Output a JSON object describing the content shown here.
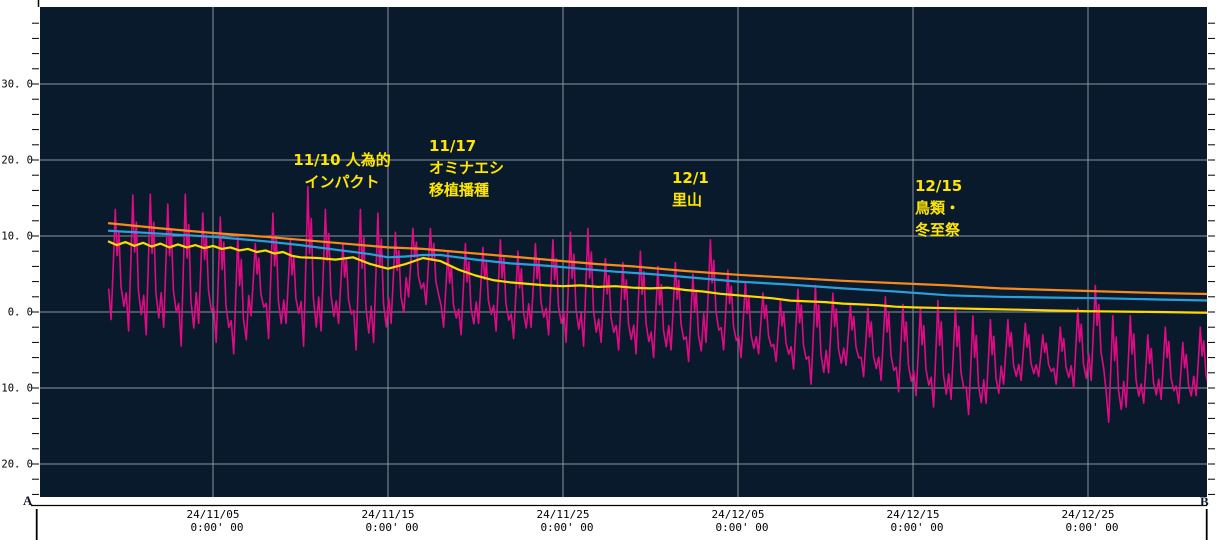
{
  "figure": {
    "outer_bg": "#ffffff",
    "plot_bg": "#081a2c",
    "grid_color": "#8d949c",
    "axis_text_color": "#000000",
    "annotation_color": "#ffe600"
  },
  "endpoints": {
    "left": "A",
    "right": "B"
  },
  "annotations": [
    {
      "id": "impact",
      "text": "11/10 人為的\nインパクト"
    },
    {
      "id": "ominaeshi",
      "text": "11/17\nオミナエシ\n移植播種"
    },
    {
      "id": "satoyama",
      "text": "12/1\n里山"
    },
    {
      "id": "winter",
      "text": "12/15\n鳥類・\n冬至祭"
    }
  ],
  "chart_data": {
    "type": "line",
    "title": "",
    "xlabel": "",
    "ylabel": "",
    "grid": true,
    "legend": "none",
    "x_unit": "days since 24/10/30 0:00",
    "x_range_days": [
      -3.9,
      62.8
    ],
    "ylim": [
      -24.3,
      40.1
    ],
    "y_minor_tick_step": 2,
    "y_ticks": [
      {
        "value": 30,
        "label": "30. 0"
      },
      {
        "value": 20,
        "label": "20. 0"
      },
      {
        "value": 10,
        "label": "10. 0"
      },
      {
        "value": 0,
        "label": "0. 0"
      },
      {
        "value": -10,
        "label": "-10. 0"
      },
      {
        "value": -20,
        "label": "-20. 0"
      }
    ],
    "x_ticks": [
      {
        "day": 6,
        "date": "24/11/05",
        "time": "0:00' 00"
      },
      {
        "day": 16,
        "date": "24/11/15",
        "time": "0:00' 00"
      },
      {
        "day": 26,
        "date": "24/11/25",
        "time": "0:00' 00"
      },
      {
        "day": 36,
        "date": "24/12/05",
        "time": "0:00' 00"
      },
      {
        "day": 46,
        "date": "24/12/15",
        "time": "0:00' 00"
      },
      {
        "day": 56,
        "date": "24/12/25",
        "time": "0:00' 00"
      }
    ],
    "series": [
      {
        "name": "raw-diurnal-magenta",
        "color": "#e00a84",
        "style": "jagged-daily",
        "daily_hi_lo": [
          [
            0,
            13.5,
            -1.0
          ],
          [
            1,
            15.4,
            -2.5
          ],
          [
            2,
            15.5,
            -3.0
          ],
          [
            3,
            14.2,
            -2.0
          ],
          [
            4,
            15.5,
            -4.5
          ],
          [
            5,
            13.0,
            -1.5
          ],
          [
            6,
            12.5,
            -4.0
          ],
          [
            7,
            10.0,
            -5.5
          ],
          [
            8,
            9.0,
            -0.5
          ],
          [
            9,
            13.0,
            -3.5
          ],
          [
            10,
            9.5,
            -1.5
          ],
          [
            11,
            16.5,
            -4.5
          ],
          [
            12,
            13.5,
            -2.5
          ],
          [
            13,
            9.0,
            -1.5
          ],
          [
            14,
            13.5,
            -5.0
          ],
          [
            15,
            13.0,
            -4.0
          ],
          [
            16,
            10.5,
            -1.5
          ],
          [
            17,
            11.0,
            2.0
          ],
          [
            18,
            11.0,
            1.0
          ],
          [
            19,
            8.0,
            -2.0
          ],
          [
            20,
            9.0,
            -3.0
          ],
          [
            21,
            8.5,
            -1.5
          ],
          [
            22,
            9.5,
            -2.5
          ],
          [
            23,
            8.0,
            -3.5
          ],
          [
            24,
            9.0,
            -2.0
          ],
          [
            25,
            9.5,
            -3.0
          ],
          [
            26,
            10.5,
            -4.0
          ],
          [
            27,
            11.0,
            -4.5
          ],
          [
            28,
            7.0,
            -4.0
          ],
          [
            29,
            6.5,
            -5.0
          ],
          [
            30,
            8.0,
            -5.5
          ],
          [
            31,
            6.0,
            -6.0
          ],
          [
            32,
            6.5,
            -5.0
          ],
          [
            33,
            5.0,
            -6.5
          ],
          [
            34,
            9.5,
            -4.0
          ],
          [
            35,
            5.5,
            -5.0
          ],
          [
            36,
            4.0,
            -6.0
          ],
          [
            37,
            2.5,
            -5.5
          ],
          [
            38,
            1.5,
            -6.5
          ],
          [
            39,
            3.0,
            -7.5
          ],
          [
            40,
            3.5,
            -9.5
          ],
          [
            41,
            2.5,
            -8.0
          ],
          [
            42,
            1.0,
            -7.0
          ],
          [
            43,
            0.5,
            -8.5
          ],
          [
            44,
            2.0,
            -9.0
          ],
          [
            45,
            1.0,
            -10.5
          ],
          [
            46,
            0.5,
            -11.0
          ],
          [
            47,
            1.5,
            -12.5
          ],
          [
            48,
            0.5,
            -11.5
          ],
          [
            49,
            -0.5,
            -13.5
          ],
          [
            50,
            -1.0,
            -12.0
          ],
          [
            51,
            -1.0,
            -9.5
          ],
          [
            52,
            -1.5,
            -9.0
          ],
          [
            53,
            -3.0,
            -8.5
          ],
          [
            54,
            -2.0,
            -9.5
          ],
          [
            55,
            0.5,
            -10.0
          ],
          [
            56,
            3.5,
            -9.0
          ],
          [
            57,
            -0.5,
            -14.5
          ],
          [
            58,
            -0.5,
            -12.5
          ],
          [
            59,
            -3.0,
            -12.0
          ],
          [
            60,
            -2.0,
            -11.5
          ],
          [
            61,
            -4.0,
            -12.0
          ],
          [
            62,
            -2.0,
            -11.0
          ],
          [
            63,
            -7.0,
            -7.5
          ]
        ]
      },
      {
        "name": "smooth-orange",
        "color": "#f78a1d",
        "style": "smooth",
        "points": [
          [
            0,
            11.7
          ],
          [
            3,
            11.0
          ],
          [
            6,
            10.4
          ],
          [
            9,
            9.9
          ],
          [
            11,
            9.5
          ],
          [
            13,
            9.1
          ],
          [
            16,
            8.5
          ],
          [
            18,
            8.3
          ],
          [
            20,
            7.9
          ],
          [
            22,
            7.5
          ],
          [
            24,
            7.1
          ],
          [
            26,
            6.7
          ],
          [
            28,
            6.3
          ],
          [
            30,
            6.0
          ],
          [
            33,
            5.4
          ],
          [
            36,
            4.9
          ],
          [
            39,
            4.5
          ],
          [
            42,
            4.1
          ],
          [
            45,
            3.8
          ],
          [
            48,
            3.5
          ],
          [
            51,
            3.1
          ],
          [
            54,
            2.9
          ],
          [
            57,
            2.7
          ],
          [
            60,
            2.5
          ],
          [
            63,
            2.35
          ]
        ]
      },
      {
        "name": "smooth-blue",
        "color": "#2b9fdc",
        "style": "smooth",
        "points": [
          [
            0,
            10.7
          ],
          [
            3,
            10.3
          ],
          [
            6,
            9.9
          ],
          [
            9,
            9.3
          ],
          [
            11,
            8.8
          ],
          [
            13,
            8.2
          ],
          [
            15,
            7.6
          ],
          [
            16,
            7.2
          ],
          [
            17,
            7.3
          ],
          [
            18,
            7.5
          ],
          [
            19,
            7.5
          ],
          [
            20,
            7.2
          ],
          [
            21,
            6.9
          ],
          [
            23,
            6.4
          ],
          [
            25,
            6.1
          ],
          [
            27,
            5.7
          ],
          [
            29,
            5.3
          ],
          [
            31,
            5.0
          ],
          [
            33,
            4.6
          ],
          [
            36,
            4.0
          ],
          [
            39,
            3.6
          ],
          [
            42,
            3.1
          ],
          [
            45,
            2.7
          ],
          [
            48,
            2.2
          ],
          [
            51,
            2.0
          ],
          [
            54,
            1.9
          ],
          [
            57,
            1.8
          ],
          [
            60,
            1.65
          ],
          [
            63,
            1.5
          ]
        ]
      },
      {
        "name": "smooth-yellow",
        "color": "#ffd900",
        "style": "smooth",
        "points": [
          [
            0,
            9.3
          ],
          [
            0.5,
            8.8
          ],
          [
            1,
            9.2
          ],
          [
            1.5,
            8.7
          ],
          [
            2,
            9.1
          ],
          [
            2.5,
            8.6
          ],
          [
            3,
            9.0
          ],
          [
            3.5,
            8.5
          ],
          [
            4,
            8.9
          ],
          [
            4.5,
            8.5
          ],
          [
            5,
            8.8
          ],
          [
            5.5,
            8.4
          ],
          [
            6,
            8.7
          ],
          [
            6.5,
            8.3
          ],
          [
            7,
            8.5
          ],
          [
            7.5,
            8.1
          ],
          [
            8,
            8.3
          ],
          [
            8.5,
            7.9
          ],
          [
            9,
            8.1
          ],
          [
            9.5,
            7.7
          ],
          [
            10,
            7.9
          ],
          [
            10.5,
            7.4
          ],
          [
            11,
            7.2
          ],
          [
            12,
            7.1
          ],
          [
            13,
            6.9
          ],
          [
            14,
            7.2
          ],
          [
            15,
            6.3
          ],
          [
            16,
            5.7
          ],
          [
            17,
            6.3
          ],
          [
            18,
            7.1
          ],
          [
            19,
            6.7
          ],
          [
            20,
            5.6
          ],
          [
            21,
            4.8
          ],
          [
            22,
            4.2
          ],
          [
            23,
            3.9
          ],
          [
            24,
            3.7
          ],
          [
            25,
            3.5
          ],
          [
            26,
            3.4
          ],
          [
            27,
            3.5
          ],
          [
            28,
            3.3
          ],
          [
            29,
            3.4
          ],
          [
            30,
            3.2
          ],
          [
            31,
            3.1
          ],
          [
            32,
            3.2
          ],
          [
            33,
            2.9
          ],
          [
            34,
            2.7
          ],
          [
            35,
            2.4
          ],
          [
            36,
            2.2
          ],
          [
            37,
            2.0
          ],
          [
            38,
            1.8
          ],
          [
            39,
            1.5
          ],
          [
            40,
            1.4
          ],
          [
            41,
            1.3
          ],
          [
            42,
            1.1
          ],
          [
            43,
            1.0
          ],
          [
            44,
            0.9
          ],
          [
            45,
            0.7
          ],
          [
            46,
            0.6
          ],
          [
            48,
            0.5
          ],
          [
            50,
            0.4
          ],
          [
            52,
            0.3
          ],
          [
            54,
            0.2
          ],
          [
            56,
            0.1
          ],
          [
            58,
            0.05
          ],
          [
            60,
            0.0
          ],
          [
            63,
            -0.1
          ]
        ]
      }
    ]
  }
}
